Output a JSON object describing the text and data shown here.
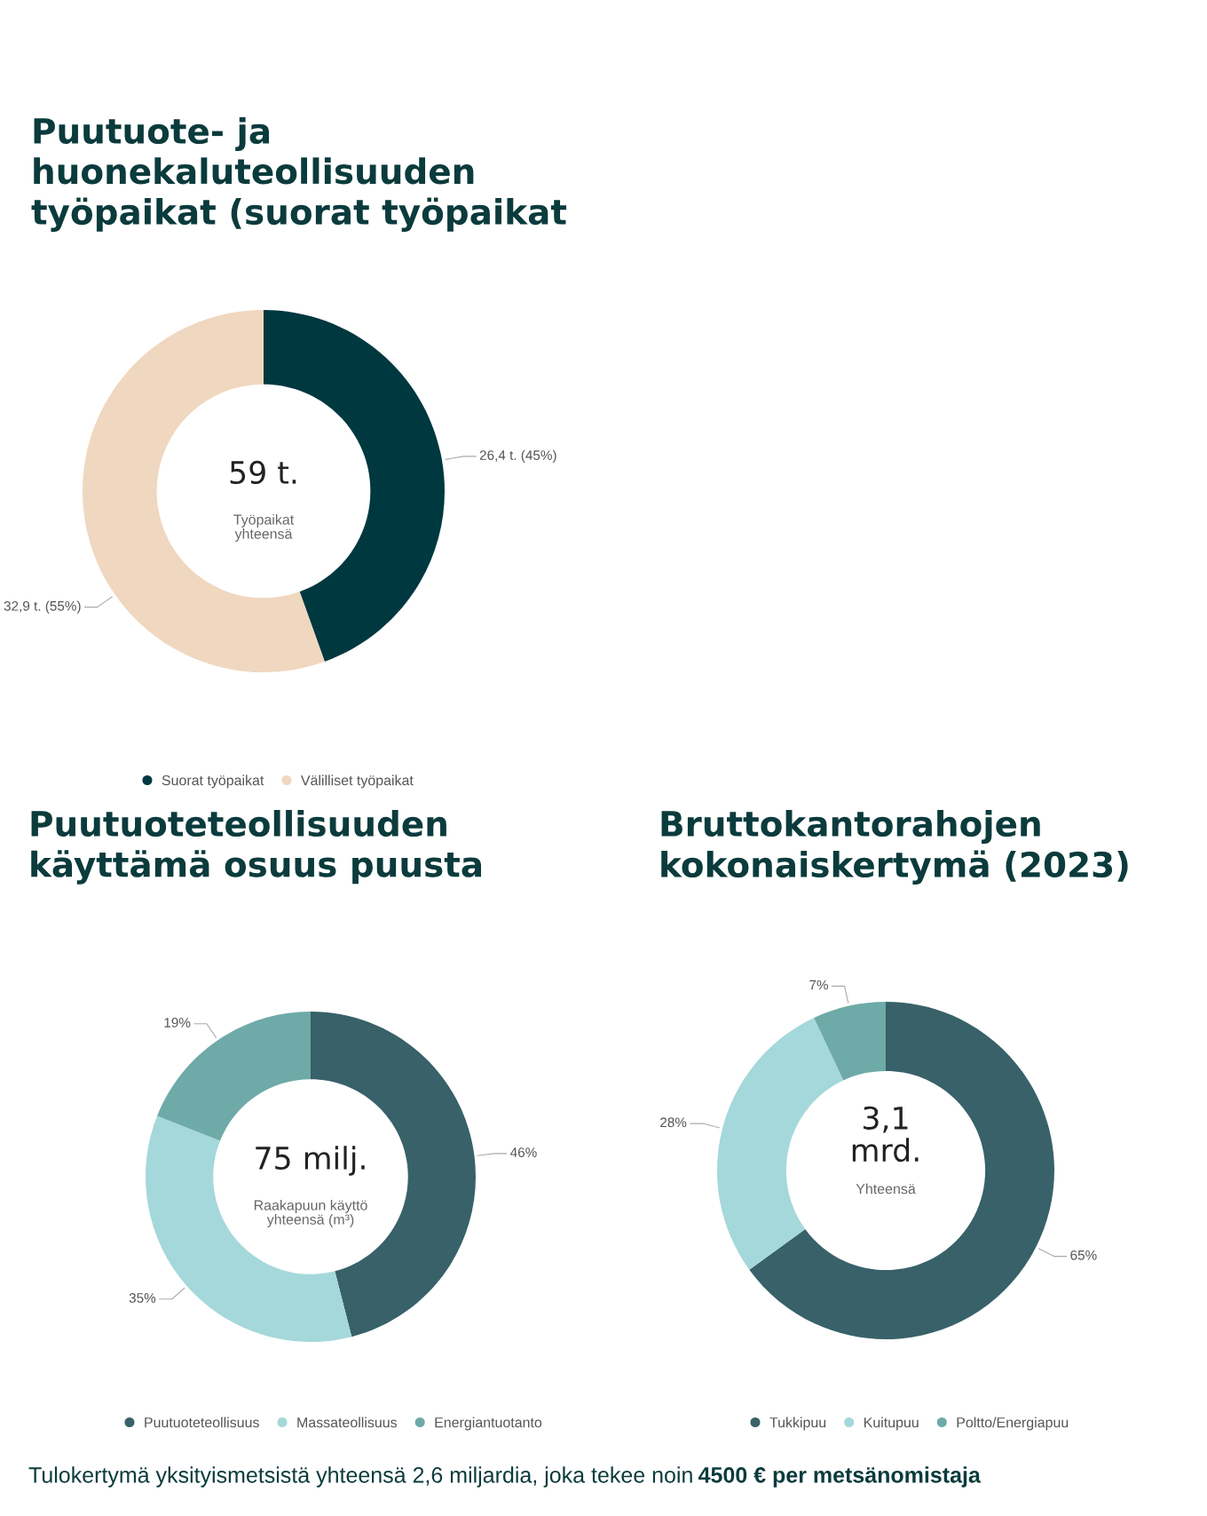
{
  "chart_data": [
    {
      "type": "donut",
      "title": "Puutuote- ja\nhuonekaluteollisuuden\ntyöpaikat (suorat työpaikat",
      "categories": [
        "Suorat työpaikat",
        "Välilliset työpaikat"
      ],
      "values": [
        26.4,
        32.9
      ],
      "colors": [
        "#003840",
        "#f0d7bf"
      ],
      "value_labels": [
        "26,4 t. (45%)",
        "32,9 t. (55%)"
      ],
      "legend": "bottom",
      "annotations": [
        "59 t.",
        "Työpaikat\nyhteensä"
      ]
    },
    {
      "type": "donut",
      "title": "Puutuoteteollisuuden\nkäyttämä osuus puusta",
      "categories": [
        "Puutuoteteollisuus",
        "Massateollisuus",
        "Energiantuotanto"
      ],
      "values": [
        46,
        35,
        19
      ],
      "colors": [
        "#386169",
        "#a5d8da",
        "#6eaaa8"
      ],
      "value_labels": [
        "46%",
        "35%",
        "19%"
      ],
      "legend": "bottom",
      "annotations": [
        "75 milj.",
        "Raakapuun käyttö\nyhteensä (m³)"
      ]
    },
    {
      "type": "donut",
      "title": "Bruttokantorahojen\nkokonaiskertymä (2023)",
      "categories": [
        "Tukkipuu",
        "Kuitupuu",
        "Poltto/Energiapuu"
      ],
      "values": [
        65,
        28,
        7
      ],
      "colors": [
        "#386169",
        "#a5d8da",
        "#6eaaa8"
      ],
      "value_labels": [
        "65%",
        "28%",
        "7%"
      ],
      "legend": "bottom",
      "annotations": [
        "3,1\nmrd.",
        "Yhteensä",
        "Tulokertymä yksityismetsistä yhteensä 2,6 miljardia, joka tekee noin",
        "4500 € per metsänomistaja"
      ]
    }
  ]
}
